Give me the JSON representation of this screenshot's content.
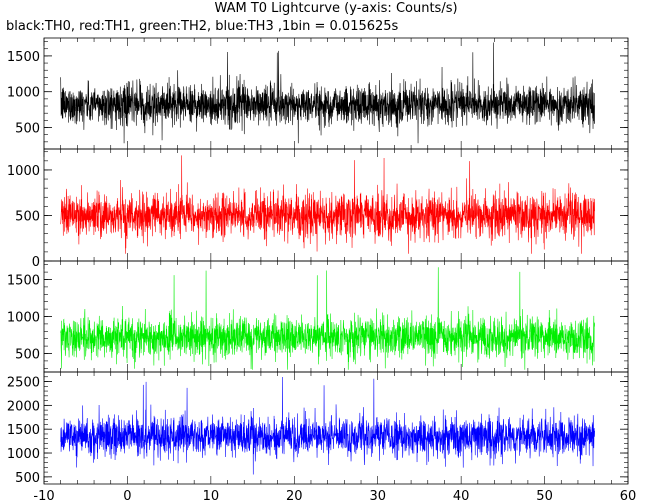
{
  "chart_data": {
    "type": "line",
    "title": "WAM T0 Lightcurve (y-axis: Counts/s)",
    "subtitle": "black:TH0, red:TH1, green:TH2, blue:TH3 ,1bin = 0.015625s",
    "xlabel": "",
    "ylabel": "",
    "x_range": [
      -10,
      60
    ],
    "x_ticks": [
      -10,
      0,
      10,
      20,
      30,
      40,
      50,
      60
    ],
    "data_x_range": [
      -8.0,
      56.0
    ],
    "grid": false,
    "legend": "none",
    "panels": [
      {
        "series_label": "TH0",
        "color": "#000000",
        "ylim": [
          200,
          1750
        ],
        "y_ticks": [
          500,
          1000,
          1500
        ],
        "mean": 820,
        "spread_typical": [
          550,
          1100
        ],
        "spread_extreme": [
          280,
          1720
        ]
      },
      {
        "series_label": "TH1",
        "color": "#ff0000",
        "ylim": [
          0,
          1230
        ],
        "y_ticks": [
          0,
          500,
          1000
        ],
        "mean": 500,
        "spread_typical": [
          280,
          760
        ],
        "spread_extreme": [
          80,
          1180
        ]
      },
      {
        "series_label": "TH2",
        "color": "#00ee00",
        "ylim": [
          250,
          1750
        ],
        "y_ticks": [
          500,
          1000,
          1500
        ],
        "mean": 720,
        "spread_typical": [
          450,
          1000
        ],
        "spread_extreme": [
          280,
          1700
        ]
      },
      {
        "series_label": "TH3",
        "color": "#0000ff",
        "ylim": [
          350,
          2700
        ],
        "y_ticks": [
          500,
          1000,
          1500,
          2000,
          2500
        ],
        "mean": 1350,
        "spread_typical": [
          950,
          1800
        ],
        "spread_extreme": [
          550,
          2600
        ]
      }
    ]
  }
}
